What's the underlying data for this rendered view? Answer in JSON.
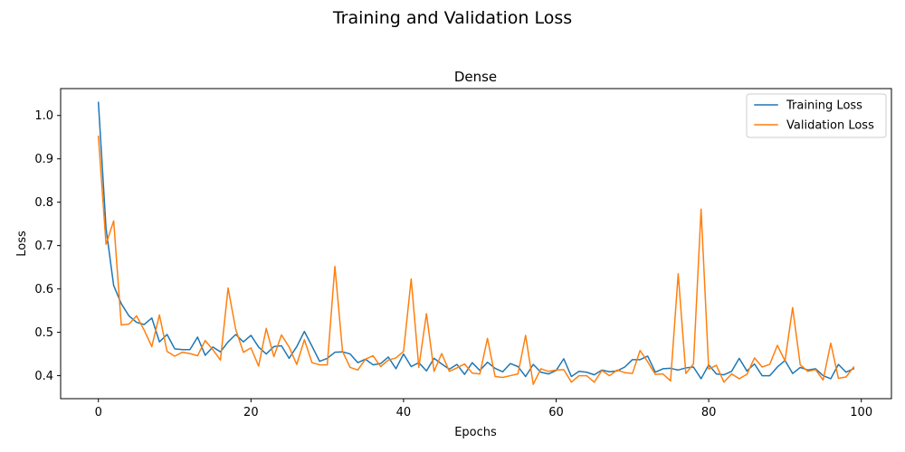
{
  "figure": {
    "suptitle": "Training and Validation Loss"
  },
  "chart_data": {
    "type": "line",
    "title": "Dense",
    "xlabel": "Epochs",
    "ylabel": "Loss",
    "xlim": [
      -4.95,
      103.95
    ],
    "ylim": [
      0.347,
      1.062
    ],
    "xticks": [
      0,
      20,
      40,
      60,
      80,
      100
    ],
    "yticks": [
      0.4,
      0.5,
      0.6,
      0.7,
      0.8,
      0.9,
      1.0
    ],
    "xtick_labels": [
      "0",
      "20",
      "40",
      "60",
      "80",
      "100"
    ],
    "ytick_labels": [
      "0.4",
      "0.5",
      "0.6",
      "0.7",
      "0.8",
      "0.9",
      "1.0"
    ],
    "grid": false,
    "legend_position": "top-right",
    "x": [
      0,
      1,
      2,
      3,
      4,
      5,
      6,
      7,
      8,
      9,
      10,
      11,
      12,
      13,
      14,
      15,
      16,
      17,
      18,
      19,
      20,
      21,
      22,
      23,
      24,
      25,
      26,
      27,
      28,
      29,
      30,
      31,
      32,
      33,
      34,
      35,
      36,
      37,
      38,
      39,
      40,
      41,
      42,
      43,
      44,
      45,
      46,
      47,
      48,
      49,
      50,
      51,
      52,
      53,
      54,
      55,
      56,
      57,
      58,
      59,
      60,
      61,
      62,
      63,
      64,
      65,
      66,
      67,
      68,
      69,
      70,
      71,
      72,
      73,
      74,
      75,
      76,
      77,
      78,
      79,
      80,
      81,
      82,
      83,
      84,
      85,
      86,
      87,
      88,
      89,
      90,
      91,
      92,
      93,
      94,
      95,
      96,
      97,
      98,
      99
    ],
    "series": [
      {
        "name": "Training Loss",
        "color": "#1f77b4",
        "values": [
          1.03,
          0.74,
          0.608,
          0.566,
          0.538,
          0.523,
          0.518,
          0.533,
          0.478,
          0.495,
          0.462,
          0.46,
          0.46,
          0.489,
          0.447,
          0.466,
          0.455,
          0.478,
          0.495,
          0.478,
          0.493,
          0.466,
          0.45,
          0.467,
          0.469,
          0.44,
          0.467,
          0.502,
          0.468,
          0.433,
          0.44,
          0.454,
          0.455,
          0.45,
          0.43,
          0.438,
          0.425,
          0.428,
          0.443,
          0.416,
          0.45,
          0.421,
          0.43,
          0.411,
          0.44,
          0.427,
          0.415,
          0.426,
          0.403,
          0.43,
          0.412,
          0.431,
          0.417,
          0.409,
          0.428,
          0.421,
          0.398,
          0.426,
          0.408,
          0.404,
          0.412,
          0.439,
          0.398,
          0.41,
          0.408,
          0.402,
          0.413,
          0.409,
          0.411,
          0.42,
          0.437,
          0.437,
          0.445,
          0.408,
          0.416,
          0.417,
          0.413,
          0.418,
          0.42,
          0.393,
          0.425,
          0.404,
          0.402,
          0.41,
          0.44,
          0.411,
          0.427,
          0.4,
          0.4,
          0.42,
          0.435,
          0.405,
          0.419,
          0.413,
          0.416,
          0.4,
          0.393,
          0.426,
          0.408,
          0.416
        ]
      },
      {
        "name": "Validation Loss",
        "color": "#ff7f0e",
        "values": [
          0.952,
          0.703,
          0.757,
          0.517,
          0.519,
          0.538,
          0.505,
          0.467,
          0.54,
          0.456,
          0.445,
          0.454,
          0.451,
          0.446,
          0.481,
          0.46,
          0.436,
          0.602,
          0.507,
          0.454,
          0.464,
          0.422,
          0.509,
          0.444,
          0.494,
          0.466,
          0.426,
          0.483,
          0.43,
          0.425,
          0.425,
          0.652,
          0.456,
          0.419,
          0.413,
          0.438,
          0.446,
          0.421,
          0.436,
          0.441,
          0.456,
          0.623,
          0.419,
          0.543,
          0.41,
          0.451,
          0.41,
          0.418,
          0.427,
          0.406,
          0.404,
          0.486,
          0.398,
          0.396,
          0.4,
          0.404,
          0.493,
          0.38,
          0.416,
          0.41,
          0.413,
          0.414,
          0.385,
          0.4,
          0.4,
          0.385,
          0.412,
          0.4,
          0.413,
          0.407,
          0.405,
          0.458,
          0.432,
          0.403,
          0.404,
          0.388,
          0.635,
          0.405,
          0.427,
          0.784,
          0.415,
          0.424,
          0.385,
          0.404,
          0.393,
          0.403,
          0.441,
          0.42,
          0.426,
          0.47,
          0.434,
          0.557,
          0.425,
          0.41,
          0.414,
          0.39,
          0.475,
          0.394,
          0.397,
          0.42
        ]
      }
    ]
  }
}
